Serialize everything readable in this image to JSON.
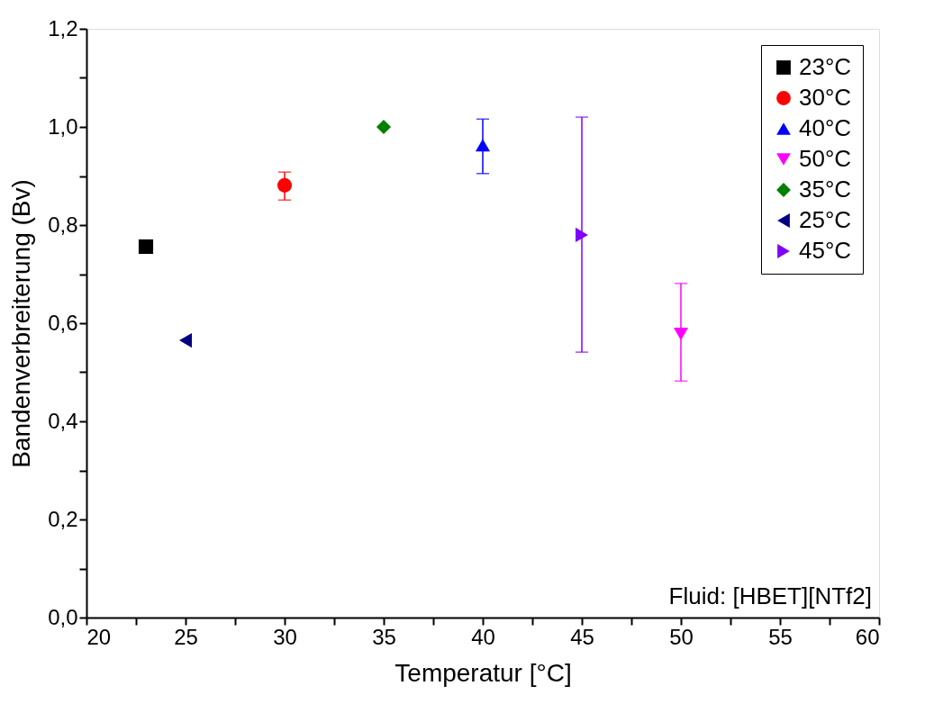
{
  "chart_data": {
    "type": "scatter",
    "xlabel": "Temperatur [°C]",
    "ylabel": "Bandenverbreiterung (Bv)",
    "xlim": [
      20,
      60
    ],
    "ylim": [
      0,
      1.2
    ],
    "xticks": [
      20,
      {
        "value": 22.5,
        "label": null
      },
      25,
      {
        "value": 27.5,
        "label": null
      },
      30,
      {
        "value": 32.5,
        "label": null
      },
      35,
      {
        "value": 37.5,
        "label": null
      },
      40,
      {
        "value": 42.5,
        "label": null
      },
      45,
      {
        "value": 47.5,
        "label": null
      },
      50,
      {
        "value": 52.5,
        "label": null
      },
      55,
      {
        "value": 57.5,
        "label": null
      },
      60
    ],
    "yticks": [
      {
        "value": 0,
        "label": "0,0"
      },
      {
        "value": 0.1,
        "label": null
      },
      {
        "value": 0.2,
        "label": "0,2"
      },
      {
        "value": 0.3,
        "label": null
      },
      {
        "value": 0.4,
        "label": "0,4"
      },
      {
        "value": 0.5,
        "label": null
      },
      {
        "value": 0.6,
        "label": "0,6"
      },
      {
        "value": 0.7,
        "label": null
      },
      {
        "value": 0.8,
        "label": "0,8"
      },
      {
        "value": 0.9,
        "label": null
      },
      {
        "value": 1.0,
        "label": "1,0"
      },
      {
        "value": 1.1,
        "label": null
      },
      {
        "value": 1.2,
        "label": "1,2"
      }
    ],
    "grid": false,
    "legend": "top right",
    "series": [
      {
        "name": "23°C",
        "color": "#000000",
        "marker": "square",
        "x": [
          23
        ],
        "values": [
          0.756
        ],
        "errors": [
          null
        ]
      },
      {
        "name": "30°C",
        "color": "#ff0000",
        "marker": "circle",
        "x": [
          30
        ],
        "values": [
          0.881
        ],
        "errors": [
          [
            0.851,
            0.908
          ]
        ]
      },
      {
        "name": "40°C",
        "color": "#0000ff",
        "marker": "triangle-up",
        "x": [
          40
        ],
        "values": [
          0.963
        ],
        "errors": [
          [
            0.905,
            1.016
          ]
        ]
      },
      {
        "name": "50°C",
        "color": "#ff00ff",
        "marker": "triangle-down",
        "x": [
          50
        ],
        "values": [
          0.578
        ],
        "errors": [
          [
            0.482,
            0.681
          ]
        ]
      },
      {
        "name": "35°C",
        "color": "#008000",
        "marker": "diamond",
        "x": [
          35
        ],
        "values": [
          1.0
        ],
        "errors": [
          null
        ]
      },
      {
        "name": "25°C",
        "color": "#000080",
        "marker": "triangle-left",
        "x": [
          25
        ],
        "values": [
          0.565
        ],
        "errors": [
          null
        ]
      },
      {
        "name": "45°C",
        "color": "#8000ff",
        "marker": "triangle-right",
        "x": [
          45
        ],
        "values": [
          0.78
        ],
        "errors": [
          [
            0.541,
            1.02
          ]
        ]
      }
    ],
    "annotations": [
      "Fluid: [HBET][NTf2]"
    ]
  }
}
